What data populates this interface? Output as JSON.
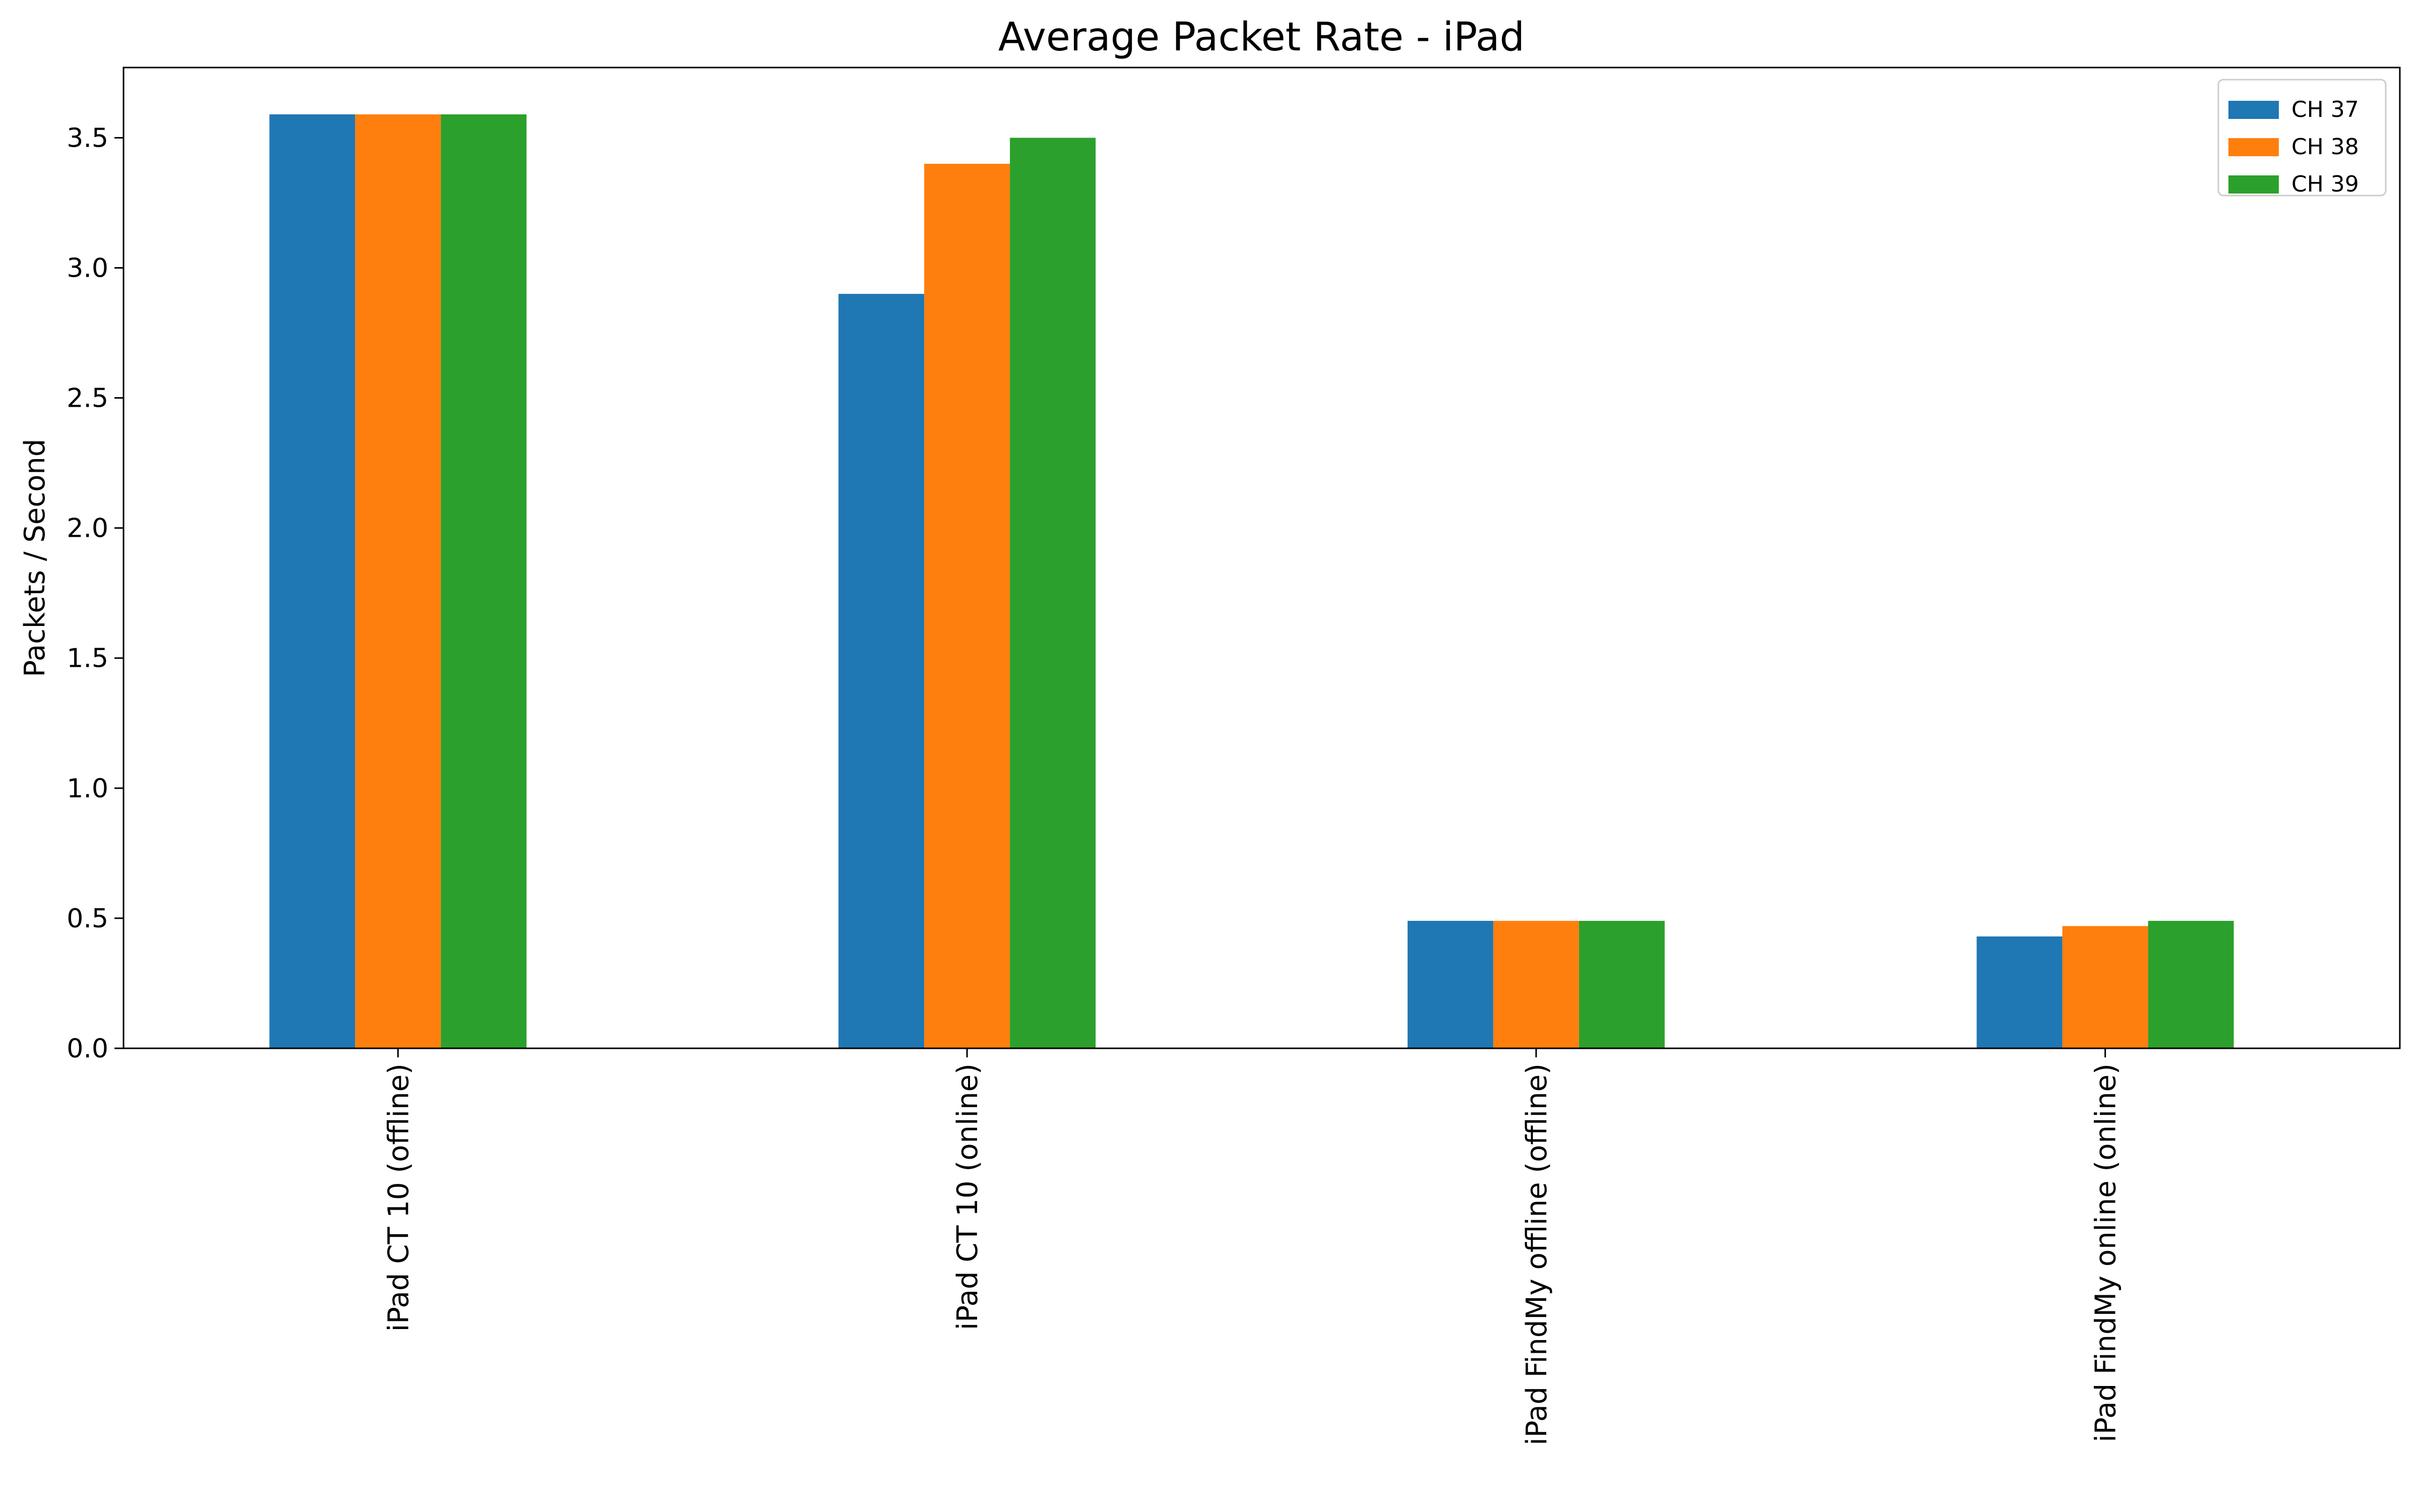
{
  "chart_data": {
    "type": "bar",
    "title": "Average Packet Rate - iPad",
    "xlabel": "",
    "ylabel": "Packets / Second",
    "categories": [
      "iPad CT 10 (offline)",
      "iPad CT 10 (online)",
      "iPad FindMy offline (offline)",
      "iPad FindMy online (online)"
    ],
    "series": [
      {
        "name": "CH 37",
        "color": "#1f77b4",
        "values": [
          3.59,
          2.9,
          0.49,
          0.43
        ]
      },
      {
        "name": "CH 38",
        "color": "#ff7f0e",
        "values": [
          3.59,
          3.4,
          0.49,
          0.47
        ]
      },
      {
        "name": "CH 39",
        "color": "#2ca02c",
        "values": [
          3.59,
          3.5,
          0.49,
          0.49
        ]
      }
    ],
    "yticks": [
      "0.0",
      "0.5",
      "1.0",
      "1.5",
      "2.0",
      "2.5",
      "3.0",
      "3.5"
    ],
    "ylim": [
      0,
      3.77
    ],
    "grid": false,
    "legend_position": "top-right"
  }
}
